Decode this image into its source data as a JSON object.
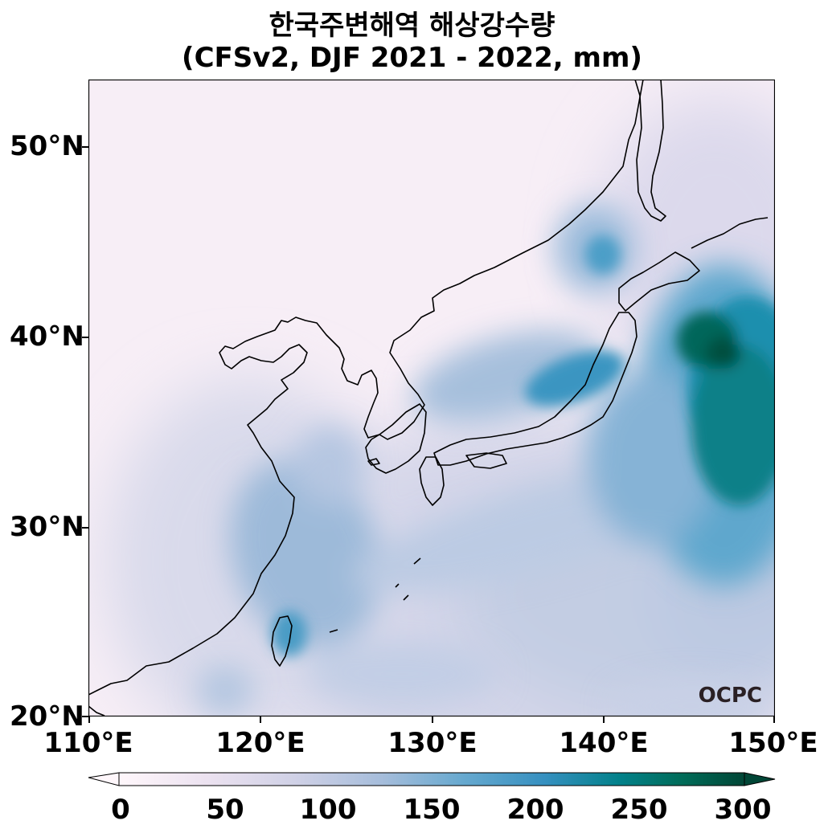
{
  "title": {
    "line1": "한국주변해역 해상강수량",
    "line2": "(CFSv2, DJF 2021 - 2022, mm)"
  },
  "map": {
    "variable": "해상강수량",
    "units": "mm",
    "model": "CFSv2",
    "season": "DJF 2021 - 2022",
    "lon_range": [
      110,
      150
    ],
    "lat_range": [
      20,
      53.5
    ],
    "lat_ticks": [
      "50°N",
      "40°N",
      "30°N",
      "20°N"
    ],
    "lon_ticks": [
      "110°E",
      "120°E",
      "130°E",
      "140°E",
      "150°E"
    ],
    "watermark": "OCPC"
  },
  "colorbar": {
    "min": 0,
    "max": 300,
    "extend": "both",
    "tick_labels": [
      "0",
      "50",
      "100",
      "150",
      "200",
      "250",
      "300"
    ],
    "colormap": [
      "#fff7fb",
      "#ece2f0",
      "#d0d1e6",
      "#a6bddb",
      "#67a9cf",
      "#3690c0",
      "#02818a",
      "#016c59",
      "#014636"
    ]
  }
}
